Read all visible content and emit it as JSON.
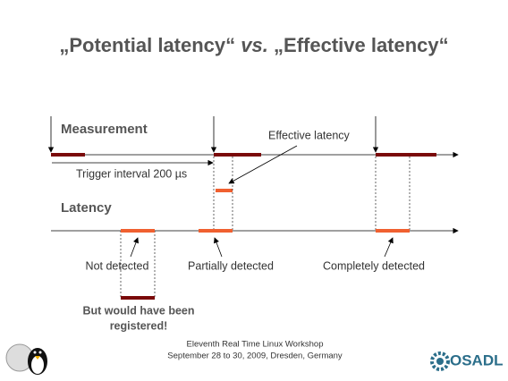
{
  "title": {
    "part1": "„Potential latency“",
    "vs": "vs.",
    "part2": "„Effective latency“"
  },
  "labels": {
    "measurement": "Measurement",
    "latency": "Latency",
    "effective_latency": "Effective latency",
    "trigger_interval": "Trigger interval 200 µs",
    "not_detected": "Not detected",
    "partially_detected": "Partially detected",
    "completely_detected": "Completely detected",
    "note_line1": "But would have been",
    "note_line2": "registered!"
  },
  "footer": {
    "line1": "Eleventh Real Time Linux Workshop",
    "line2": "September 28 to 30, 2009, Dresden, Germany",
    "logo": "OSADL"
  }
}
